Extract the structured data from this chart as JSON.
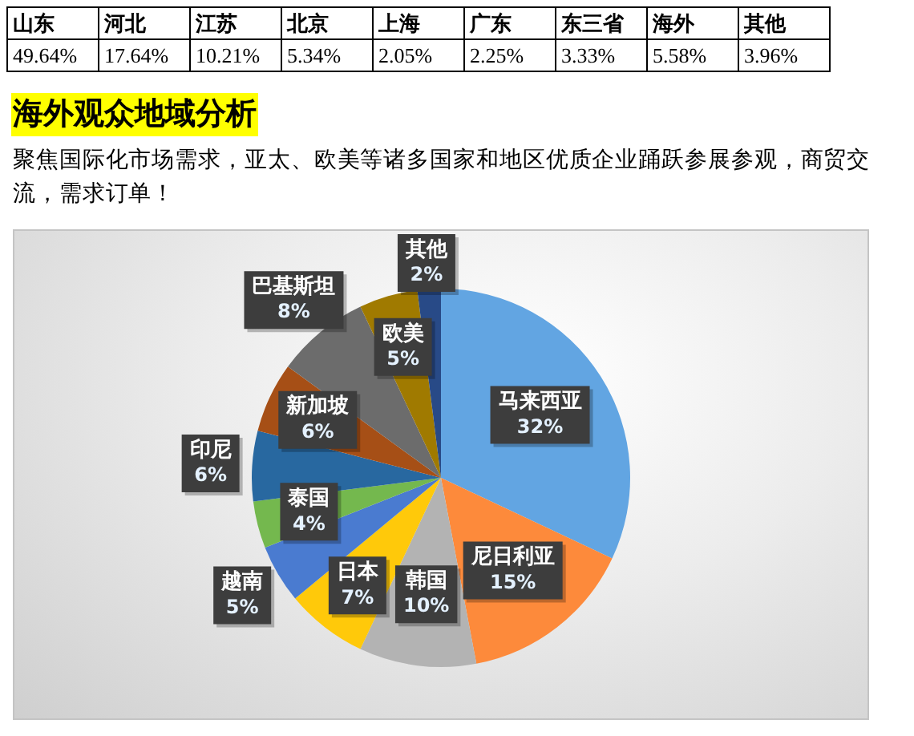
{
  "chart_data": [
    {
      "type": "other",
      "categories": [
        "山东",
        "河北",
        "江苏",
        "北京",
        "上海",
        "广东",
        "东三省",
        "海外",
        "其他"
      ],
      "values": [
        49.64,
        17.64,
        10.21,
        5.34,
        2.05,
        2.25,
        3.33,
        5.58,
        3.96
      ],
      "value_labels": [
        "49.64%",
        "17.64%",
        "10.21%",
        "5.34%",
        "2.05%",
        "2.25%",
        "3.33%",
        "5.58%",
        "3.96%"
      ]
    },
    {
      "type": "pie",
      "title": "海外观众地域分析",
      "subtitle": "聚焦国际化市场需求，亚太、欧美等诸多国家和地区优质企业踊跃参展参观，商贸交流，需求订单！",
      "categories": [
        "马来西亚",
        "尼日利亚",
        "韩国",
        "日本",
        "越南",
        "泰国",
        "印尼",
        "新加坡",
        "巴基斯坦",
        "欧美",
        "其他"
      ],
      "values": [
        32,
        15,
        10,
        7,
        5,
        4,
        6,
        6,
        8,
        5,
        2
      ],
      "colors": [
        "#62a5e2",
        "#fd8a3b",
        "#b3b3b3",
        "#ffc90a",
        "#4a7bd0",
        "#74b84e",
        "#2868a0",
        "#a64f16",
        "#6c6c6c",
        "#a07a00",
        "#284a87"
      ],
      "value_labels": [
        "32%",
        "15%",
        "10%",
        "7%",
        "5%",
        "4%",
        "6%",
        "6%",
        "8%",
        "5%",
        "2%"
      ]
    }
  ]
}
